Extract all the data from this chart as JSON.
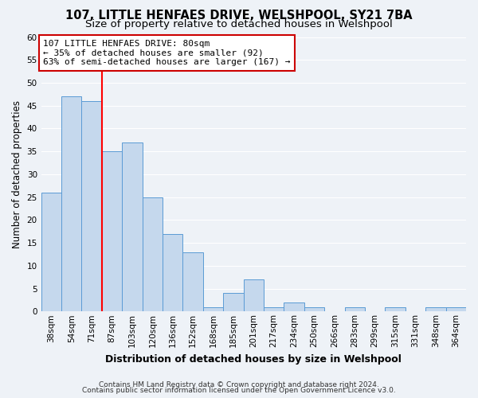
{
  "title": "107, LITTLE HENFAES DRIVE, WELSHPOOL, SY21 7BA",
  "subtitle": "Size of property relative to detached houses in Welshpool",
  "xlabel": "Distribution of detached houses by size in Welshpool",
  "ylabel": "Number of detached properties",
  "bin_labels": [
    "38sqm",
    "54sqm",
    "71sqm",
    "87sqm",
    "103sqm",
    "120sqm",
    "136sqm",
    "152sqm",
    "168sqm",
    "185sqm",
    "201sqm",
    "217sqm",
    "234sqm",
    "250sqm",
    "266sqm",
    "283sqm",
    "299sqm",
    "315sqm",
    "331sqm",
    "348sqm",
    "364sqm"
  ],
  "bar_heights": [
    26,
    47,
    46,
    35,
    37,
    25,
    17,
    13,
    1,
    4,
    7,
    1,
    2,
    1,
    0,
    1,
    0,
    1,
    0,
    1,
    1
  ],
  "bar_color": "#c5d8ed",
  "bar_edge_color": "#5b9bd5",
  "ylim": [
    0,
    60
  ],
  "yticks": [
    0,
    5,
    10,
    15,
    20,
    25,
    30,
    35,
    40,
    45,
    50,
    55,
    60
  ],
  "red_line_index": 3,
  "annotation_line1": "107 LITTLE HENFAES DRIVE: 80sqm",
  "annotation_line2": "← 35% of detached houses are smaller (92)",
  "annotation_line3": "63% of semi-detached houses are larger (167) →",
  "annotation_box_color": "#ffffff",
  "annotation_box_edge_color": "#cc0000",
  "footnote1": "Contains HM Land Registry data © Crown copyright and database right 2024.",
  "footnote2": "Contains public sector information licensed under the Open Government Licence v3.0.",
  "background_color": "#eef2f7",
  "grid_color": "#ffffff",
  "title_fontsize": 10.5,
  "subtitle_fontsize": 9.5,
  "xlabel_fontsize": 9,
  "ylabel_fontsize": 8.5,
  "tick_fontsize": 7.5,
  "annotation_fontsize": 8,
  "footnote_fontsize": 6.5
}
